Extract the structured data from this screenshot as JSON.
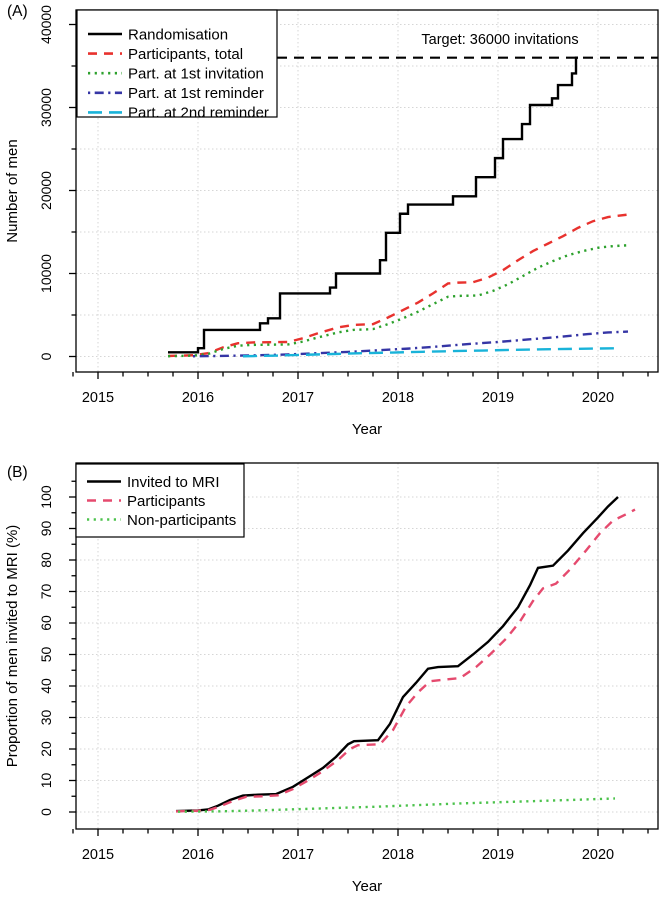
{
  "figure": {
    "background": "#ffffff",
    "grid_color": "#d6d6d6",
    "axis_color": "#000000"
  },
  "chart_data": [
    {
      "type": "line",
      "panel_label": "(A)",
      "xlabel": "Year",
      "ylabel": "Number of men",
      "xlim": [
        2014.78,
        2020.6
      ],
      "ylim": [
        0,
        41500
      ],
      "grid": "on",
      "legend_position": "top-left",
      "x_tick_values": [
        2015,
        2016,
        2017,
        2018,
        2019,
        2020
      ],
      "x_tick_labels": [
        "2015",
        "2016",
        "2017",
        "2018",
        "2019",
        "2020"
      ],
      "x_minor_step": 0.25,
      "y_tick_values": [
        0,
        10000,
        20000,
        30000,
        40000
      ],
      "y_tick_labels": [
        "0",
        "10000",
        "20000",
        "30000",
        "40000"
      ],
      "y_minor_step": 5000,
      "y_grid_step": 5000,
      "y_grid_max": 40000,
      "target": {
        "value": 36000,
        "label": "Target: 36000 invitations"
      },
      "series": [
        {
          "id": "randomisation",
          "name": "Randomisation",
          "color": "#000000",
          "dash": "solid",
          "step": true,
          "points": [
            [
              2015.7,
              500
            ],
            [
              2016.0,
              1000
            ],
            [
              2016.06,
              3200
            ],
            [
              2016.62,
              4000
            ],
            [
              2016.7,
              4600
            ],
            [
              2016.82,
              7600
            ],
            [
              2017.32,
              8300
            ],
            [
              2017.38,
              10000
            ],
            [
              2017.82,
              11600
            ],
            [
              2017.88,
              14900
            ],
            [
              2018.02,
              17200
            ],
            [
              2018.1,
              18300
            ],
            [
              2018.55,
              19300
            ],
            [
              2018.78,
              21600
            ],
            [
              2018.97,
              23900
            ],
            [
              2019.05,
              26200
            ],
            [
              2019.24,
              28000
            ],
            [
              2019.32,
              30300
            ],
            [
              2019.54,
              31100
            ],
            [
              2019.6,
              32700
            ],
            [
              2019.74,
              34100
            ],
            [
              2019.78,
              36000
            ]
          ]
        },
        {
          "id": "participants-total",
          "name": "Participants, total",
          "color": "#e8322e",
          "dash": "dashed",
          "step": false,
          "points": [
            [
              2015.7,
              60
            ],
            [
              2015.95,
              150
            ],
            [
              2016.1,
              400
            ],
            [
              2016.25,
              1100
            ],
            [
              2016.4,
              1600
            ],
            [
              2016.55,
              1700
            ],
            [
              2016.9,
              1750
            ],
            [
              2017.05,
              2200
            ],
            [
              2017.2,
              2800
            ],
            [
              2017.4,
              3500
            ],
            [
              2017.55,
              3800
            ],
            [
              2017.75,
              3900
            ],
            [
              2017.9,
              4700
            ],
            [
              2018.05,
              5600
            ],
            [
              2018.2,
              6500
            ],
            [
              2018.35,
              7600
            ],
            [
              2018.5,
              8800
            ],
            [
              2018.6,
              8900
            ],
            [
              2018.75,
              8950
            ],
            [
              2018.9,
              9500
            ],
            [
              2019.05,
              10400
            ],
            [
              2019.2,
              11600
            ],
            [
              2019.35,
              12700
            ],
            [
              2019.5,
              13600
            ],
            [
              2019.65,
              14500
            ],
            [
              2019.8,
              15500
            ],
            [
              2019.95,
              16300
            ],
            [
              2020.1,
              16800
            ],
            [
              2020.3,
              17100
            ]
          ]
        },
        {
          "id": "part-1st-invitation",
          "name": "Part. at 1st invitation",
          "color": "#2da12d",
          "dash": "dotted",
          "step": false,
          "points": [
            [
              2015.7,
              40
            ],
            [
              2015.95,
              100
            ],
            [
              2016.1,
              300
            ],
            [
              2016.25,
              900
            ],
            [
              2016.4,
              1300
            ],
            [
              2016.55,
              1400
            ],
            [
              2016.9,
              1450
            ],
            [
              2017.05,
              1800
            ],
            [
              2017.2,
              2300
            ],
            [
              2017.4,
              2900
            ],
            [
              2017.55,
              3200
            ],
            [
              2017.75,
              3300
            ],
            [
              2017.9,
              3900
            ],
            [
              2018.05,
              4600
            ],
            [
              2018.2,
              5400
            ],
            [
              2018.35,
              6300
            ],
            [
              2018.5,
              7200
            ],
            [
              2018.6,
              7300
            ],
            [
              2018.8,
              7350
            ],
            [
              2018.95,
              7900
            ],
            [
              2019.1,
              8700
            ],
            [
              2019.25,
              9700
            ],
            [
              2019.4,
              10700
            ],
            [
              2019.55,
              11500
            ],
            [
              2019.7,
              12200
            ],
            [
              2019.85,
              12700
            ],
            [
              2020.0,
              13100
            ],
            [
              2020.15,
              13300
            ],
            [
              2020.3,
              13400
            ]
          ]
        },
        {
          "id": "part-1st-reminder",
          "name": "Part. at 1st reminder",
          "color": "#3535a5",
          "dash": "dotdash",
          "step": false,
          "points": [
            [
              2015.95,
              30
            ],
            [
              2016.3,
              80
            ],
            [
              2016.6,
              150
            ],
            [
              2016.9,
              250
            ],
            [
              2017.2,
              400
            ],
            [
              2017.5,
              550
            ],
            [
              2017.8,
              750
            ],
            [
              2018.1,
              950
            ],
            [
              2018.4,
              1200
            ],
            [
              2018.7,
              1500
            ],
            [
              2019.0,
              1750
            ],
            [
              2019.3,
              2050
            ],
            [
              2019.6,
              2350
            ],
            [
              2019.9,
              2700
            ],
            [
              2020.1,
              2900
            ],
            [
              2020.3,
              3000
            ]
          ]
        },
        {
          "id": "part-2nd-reminder",
          "name": "Part. at 2nd reminder",
          "color": "#19b3d9",
          "dash": "longdash",
          "step": false,
          "points": [
            [
              2016.45,
              30
            ],
            [
              2016.75,
              100
            ],
            [
              2017.05,
              200
            ],
            [
              2017.35,
              300
            ],
            [
              2017.65,
              400
            ],
            [
              2017.95,
              480
            ],
            [
              2018.25,
              570
            ],
            [
              2018.55,
              650
            ],
            [
              2018.85,
              720
            ],
            [
              2019.15,
              800
            ],
            [
              2019.45,
              860
            ],
            [
              2019.75,
              920
            ],
            [
              2020.0,
              960
            ],
            [
              2020.2,
              1000
            ]
          ]
        }
      ]
    },
    {
      "type": "line",
      "panel_label": "(B)",
      "xlabel": "Year",
      "ylabel": "Proportion of men invited to MRI (%)",
      "xlim": [
        2014.78,
        2020.6
      ],
      "ylim": [
        0,
        110
      ],
      "grid": "on",
      "legend_position": "top-left",
      "x_tick_values": [
        2015,
        2016,
        2017,
        2018,
        2019,
        2020
      ],
      "x_tick_labels": [
        "2015",
        "2016",
        "2017",
        "2018",
        "2019",
        "2020"
      ],
      "x_minor_step": 0.25,
      "y_tick_values": [
        0,
        10,
        20,
        30,
        40,
        50,
        60,
        70,
        80,
        90,
        100
      ],
      "y_tick_labels": [
        "0",
        "10",
        "20",
        "30",
        "40",
        "50",
        "60",
        "70",
        "80",
        "90",
        "100"
      ],
      "y_minor_step": 5,
      "y_grid_step": 10,
      "y_grid_max": 100,
      "target": null,
      "series": [
        {
          "id": "invited-to-mri",
          "name": "Invited to MRI",
          "color": "#000000",
          "dash": "solid",
          "step": false,
          "points": [
            [
              2015.78,
              0.3
            ],
            [
              2016.0,
              0.5
            ],
            [
              2016.1,
              0.8
            ],
            [
              2016.2,
              2.0
            ],
            [
              2016.32,
              3.8
            ],
            [
              2016.45,
              5.2
            ],
            [
              2016.6,
              5.5
            ],
            [
              2016.78,
              5.7
            ],
            [
              2016.95,
              8.0
            ],
            [
              2017.1,
              11.0
            ],
            [
              2017.25,
              14.0
            ],
            [
              2017.38,
              17.5
            ],
            [
              2017.5,
              21.5
            ],
            [
              2017.56,
              22.5
            ],
            [
              2017.8,
              22.8
            ],
            [
              2017.92,
              28.0
            ],
            [
              2018.05,
              36.5
            ],
            [
              2018.18,
              41.0
            ],
            [
              2018.3,
              45.5
            ],
            [
              2018.4,
              46.0
            ],
            [
              2018.6,
              46.3
            ],
            [
              2018.75,
              50.0
            ],
            [
              2018.9,
              54.0
            ],
            [
              2019.05,
              59.0
            ],
            [
              2019.2,
              65.0
            ],
            [
              2019.32,
              72.0
            ],
            [
              2019.4,
              77.5
            ],
            [
              2019.55,
              78.2
            ],
            [
              2019.7,
              83.0
            ],
            [
              2019.85,
              88.5
            ],
            [
              2020.0,
              93.5
            ],
            [
              2020.1,
              97.0
            ],
            [
              2020.2,
              100.0
            ]
          ]
        },
        {
          "id": "participants",
          "name": "Participants",
          "color": "#e54a6e",
          "dash": "dashed",
          "step": false,
          "points": [
            [
              2015.78,
              0.2
            ],
            [
              2016.0,
              0.4
            ],
            [
              2016.12,
              0.7
            ],
            [
              2016.22,
              1.8
            ],
            [
              2016.35,
              3.5
            ],
            [
              2016.48,
              4.8
            ],
            [
              2016.65,
              5.0
            ],
            [
              2016.8,
              5.3
            ],
            [
              2016.95,
              7.3
            ],
            [
              2017.1,
              10.0
            ],
            [
              2017.25,
              13.0
            ],
            [
              2017.4,
              16.5
            ],
            [
              2017.52,
              20.0
            ],
            [
              2017.6,
              21.2
            ],
            [
              2017.82,
              21.5
            ],
            [
              2017.95,
              26.0
            ],
            [
              2018.08,
              33.5
            ],
            [
              2018.2,
              38.0
            ],
            [
              2018.32,
              41.5
            ],
            [
              2018.45,
              42.0
            ],
            [
              2018.62,
              42.5
            ],
            [
              2018.78,
              46.0
            ],
            [
              2018.92,
              50.0
            ],
            [
              2019.08,
              55.0
            ],
            [
              2019.22,
              60.5
            ],
            [
              2019.35,
              67.0
            ],
            [
              2019.45,
              71.0
            ],
            [
              2019.58,
              72.5
            ],
            [
              2019.72,
              77.0
            ],
            [
              2019.88,
              83.0
            ],
            [
              2020.02,
              88.5
            ],
            [
              2020.15,
              92.5
            ],
            [
              2020.28,
              94.5
            ],
            [
              2020.37,
              96.0
            ]
          ]
        },
        {
          "id": "non-participants",
          "name": "Non-participants",
          "color": "#4cc24c",
          "dash": "dotted",
          "step": false,
          "points": [
            [
              2015.8,
              0.1
            ],
            [
              2016.2,
              0.2
            ],
            [
              2016.6,
              0.5
            ],
            [
              2017.0,
              0.9
            ],
            [
              2017.4,
              1.3
            ],
            [
              2017.8,
              1.7
            ],
            [
              2018.2,
              2.2
            ],
            [
              2018.6,
              2.7
            ],
            [
              2019.0,
              3.1
            ],
            [
              2019.4,
              3.5
            ],
            [
              2019.8,
              3.9
            ],
            [
              2020.17,
              4.3
            ]
          ]
        }
      ]
    }
  ]
}
